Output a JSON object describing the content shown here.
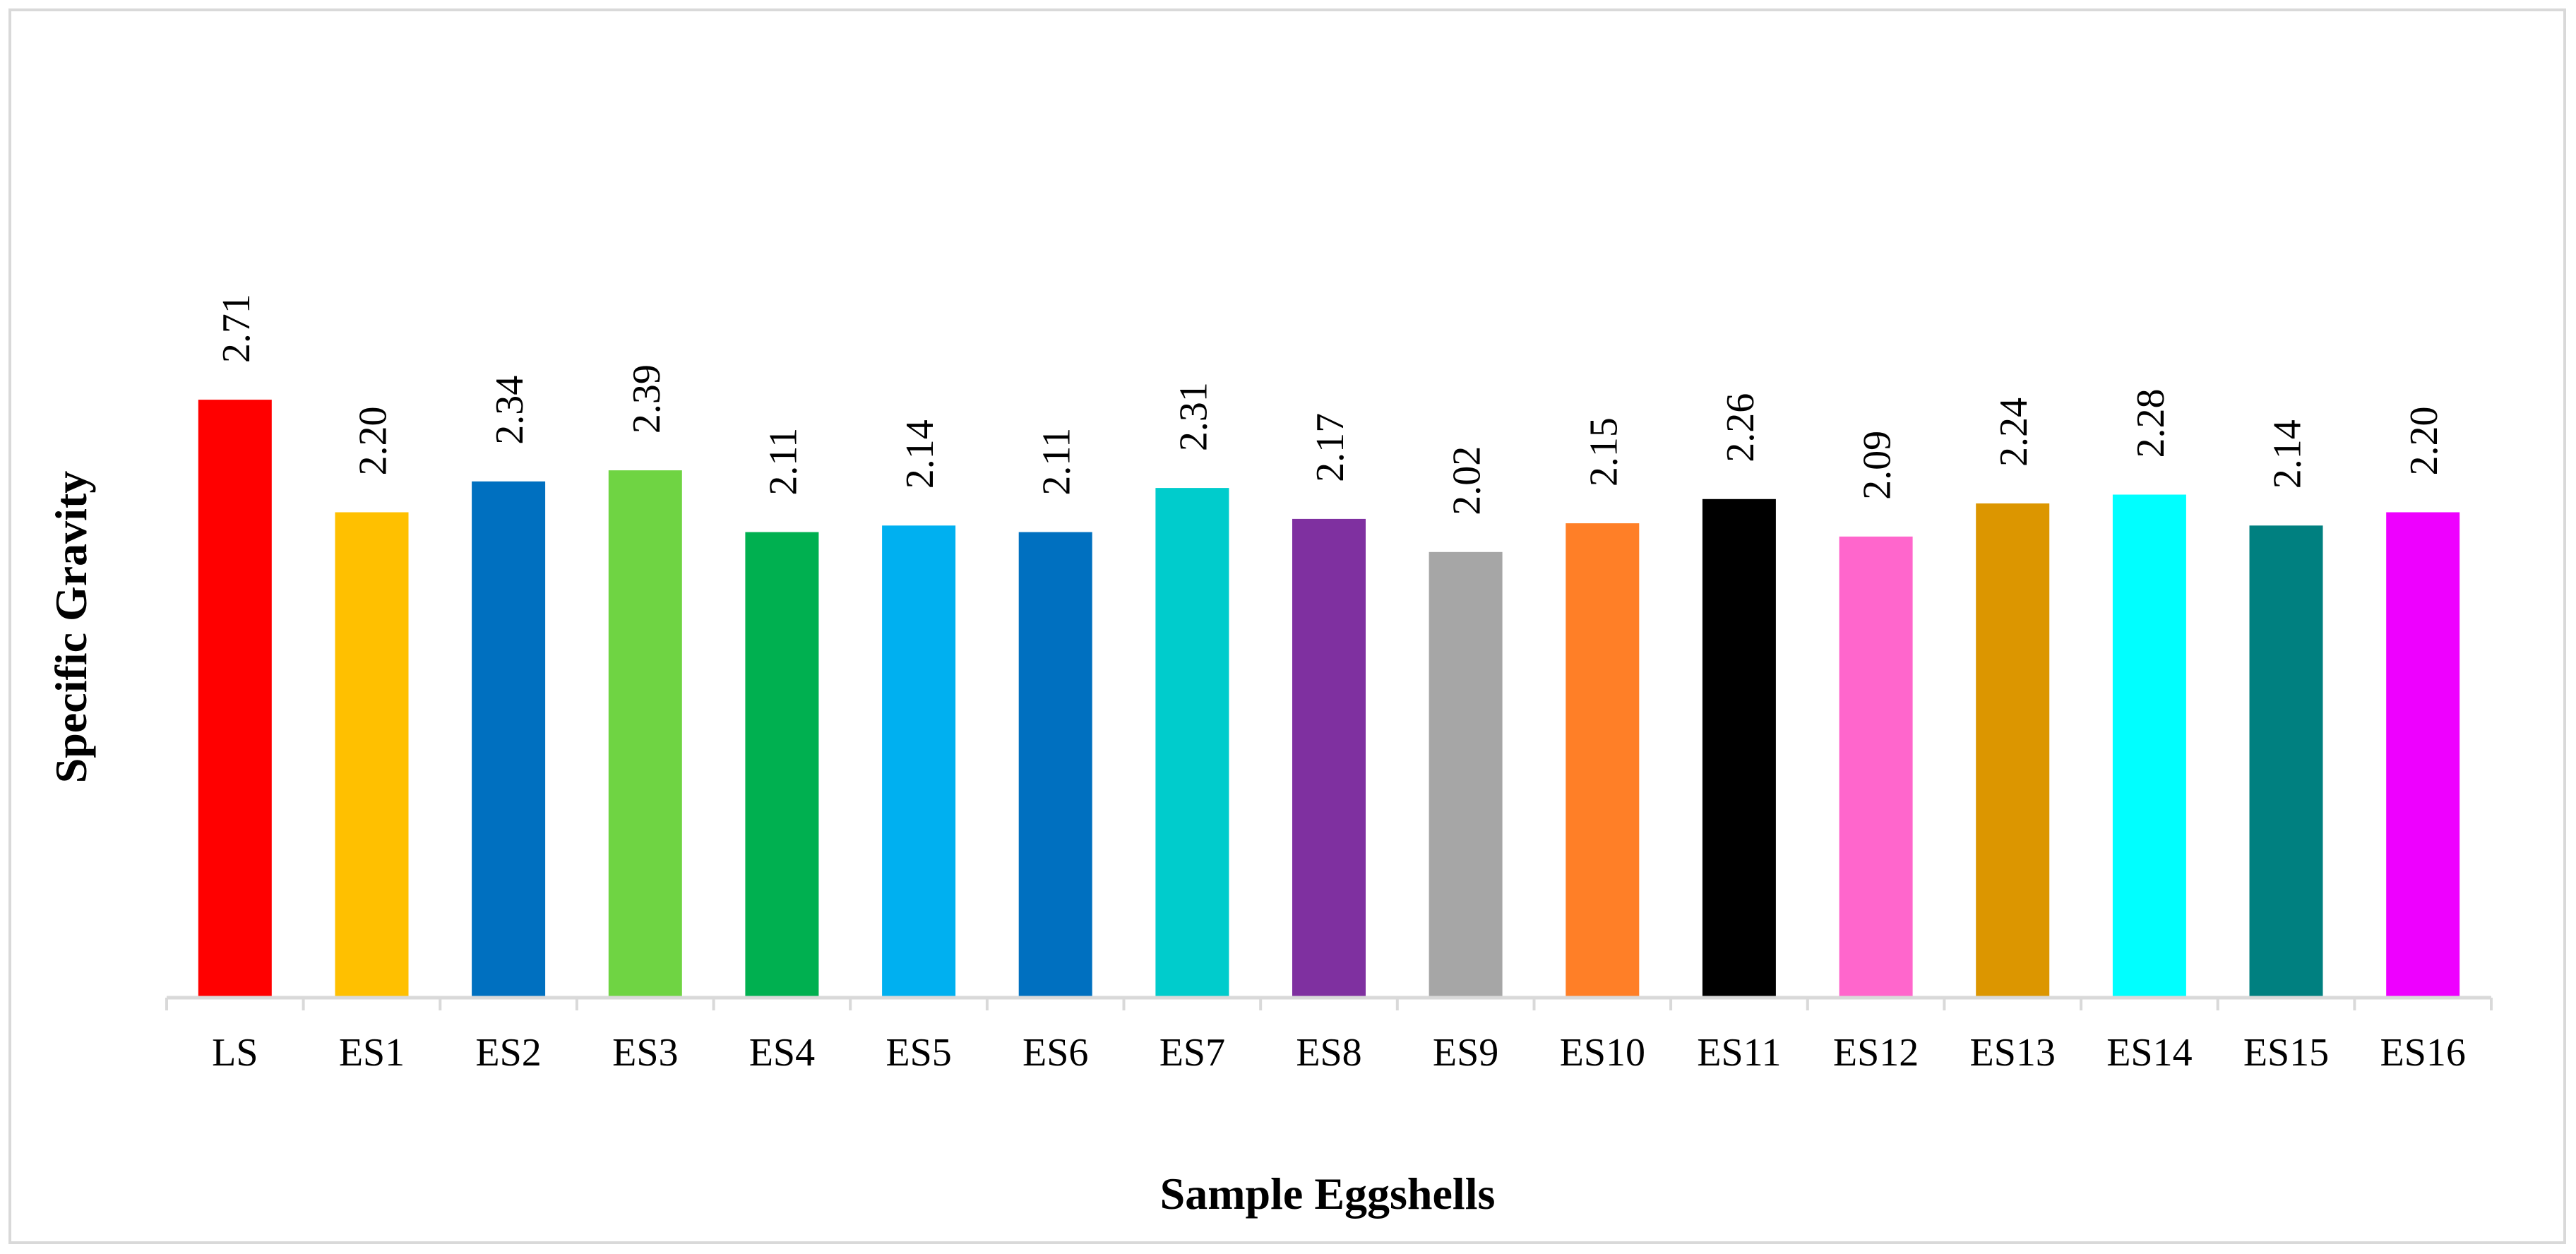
{
  "chart_data": {
    "type": "bar",
    "title": "",
    "xlabel": "Sample Eggshells",
    "ylabel": "Specific Gravity",
    "ylim": [
      0,
      3.2
    ],
    "grid": false,
    "legend": "none",
    "categories": [
      "LS",
      "ES1",
      "ES2",
      "ES3",
      "ES4",
      "ES5",
      "ES6",
      "ES7",
      "ES8",
      "ES9",
      "ES10",
      "ES11",
      "ES12",
      "ES13",
      "ES14",
      "ES15",
      "ES16"
    ],
    "values": [
      2.71,
      2.2,
      2.34,
      2.39,
      2.11,
      2.14,
      2.11,
      2.31,
      2.17,
      2.02,
      2.15,
      2.26,
      2.09,
      2.24,
      2.28,
      2.14,
      2.2
    ],
    "data_labels": [
      "2.71",
      "2.20",
      "2.34",
      "2.39",
      "2.11",
      "2.14",
      "2.11",
      "2.31",
      "2.17",
      "2.02",
      "2.15",
      "2.26",
      "2.09",
      "2.24",
      "2.28",
      "2.14",
      "2.20"
    ],
    "colors": [
      "#ff0000",
      "#ffc000",
      "#0070c0",
      "#6fd443",
      "#00b050",
      "#00b0f0",
      "#0070c0",
      "#00cccc",
      "#7f30a0",
      "#a6a6a6",
      "#ff7f27",
      "#000000",
      "#ff66cc",
      "#dc9600",
      "#00ffff",
      "#008080",
      "#ee00ff"
    ]
  }
}
